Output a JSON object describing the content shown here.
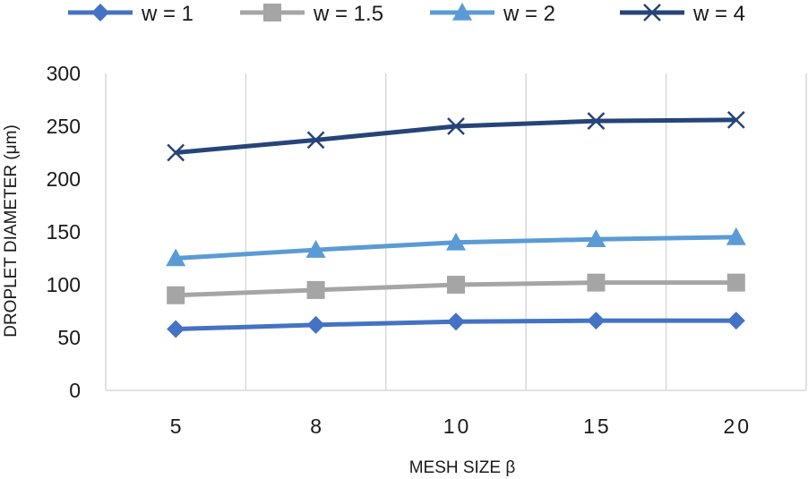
{
  "chart_data": {
    "type": "line",
    "categories": [
      "5",
      "8",
      "10",
      "15",
      "20"
    ],
    "series": [
      {
        "name": "w = 1",
        "values": [
          58,
          62,
          65,
          66,
          66
        ],
        "color": "#4472c4",
        "marker": "diamond"
      },
      {
        "name": "w = 1.5",
        "values": [
          90,
          95,
          100,
          102,
          102
        ],
        "color": "#a5a5a5",
        "marker": "square"
      },
      {
        "name": "w = 2",
        "values": [
          125,
          133,
          140,
          143,
          145
        ],
        "color": "#5b9bd5",
        "marker": "triangle"
      },
      {
        "name": "w = 4",
        "values": [
          225,
          237,
          250,
          255,
          256
        ],
        "color": "#264478",
        "marker": "x"
      }
    ],
    "title": "",
    "xlabel": "MESH SIZE β",
    "ylabel": "DROPLET DIAMETER (μm)",
    "ylim": [
      0,
      300
    ],
    "yticks": [
      0,
      50,
      100,
      150,
      200,
      250,
      300
    ],
    "grid": true,
    "legend_position": "top"
  }
}
